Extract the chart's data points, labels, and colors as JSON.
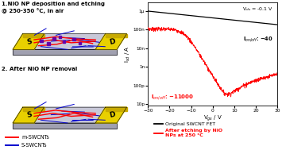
{
  "title_text": "1.NiO NP deposition and etching\n@ 250-350 °C, in air",
  "title2_text": "2. After NiO NP removal",
  "legend_m": "m-SWCNTs",
  "legend_s": "S-SWCNTs",
  "color_m": "#ff0000",
  "color_s": "#0000cd",
  "color_np": "#6600aa",
  "color_electrode": "#e8d000",
  "color_substrate_top": "#c8c8d8",
  "color_substrate_side": "#a0a0b0",
  "plot_xlabel": "V$_{gs}$ / V",
  "plot_ylabel": "I$_{sd}$ / A",
  "vds_label": "V$_{ds}$ = -0.1 V",
  "ion_off_black": "I$_{on/off}$: ~40",
  "ion_off_red": "I$_{on/off}$: ~11000",
  "legend_black": "Original SWCNT FET",
  "legend_red": "After etching by NiO\nNPs at 250 °C",
  "bg_color": "#ffffff",
  "ytick_labels": [
    "10p",
    "100p",
    "1n",
    "10n",
    "100n",
    "1μ"
  ],
  "ytick_vals": [
    1e-11,
    1e-10,
    1e-09,
    1e-08,
    1e-07,
    1e-06
  ]
}
